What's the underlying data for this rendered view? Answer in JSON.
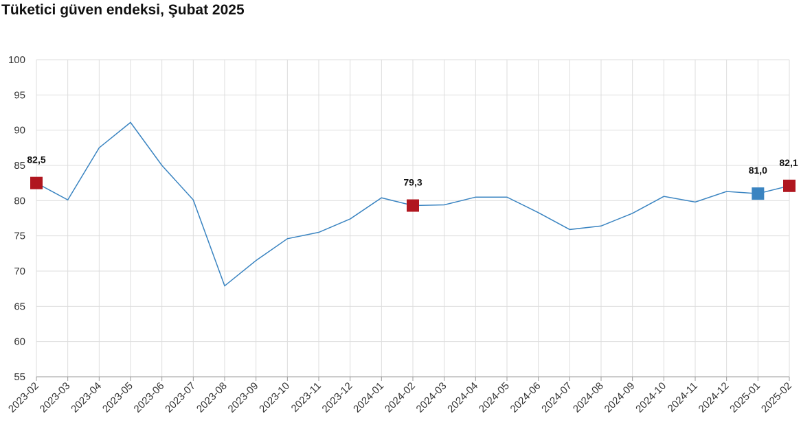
{
  "chart_data": {
    "type": "line",
    "title": "Tüketici güven endeksi, Şubat 2025",
    "categories": [
      "2023-02",
      "2023-03",
      "2023-04",
      "2023-05",
      "2023-06",
      "2023-07",
      "2023-08",
      "2023-09",
      "2023-10",
      "2023-11",
      "2023-12",
      "2024-01",
      "2024-02",
      "2024-03",
      "2024-04",
      "2024-05",
      "2024-06",
      "2024-07",
      "2024-08",
      "2024-09",
      "2024-10",
      "2024-11",
      "2024-12",
      "2025-01",
      "2025-02"
    ],
    "series": [
      {
        "color": "#3a84c1",
        "values": [
          82.5,
          80.1,
          87.5,
          91.1,
          85.0,
          80.1,
          67.9,
          71.5,
          74.6,
          75.5,
          77.4,
          80.4,
          79.3,
          79.4,
          80.5,
          80.5,
          78.3,
          75.9,
          76.4,
          78.2,
          80.6,
          79.8,
          81.3,
          81.0,
          82.1
        ],
        "value_labels": [
          "82,5",
          null,
          null,
          null,
          null,
          null,
          null,
          null,
          null,
          null,
          null,
          null,
          "79,3",
          null,
          null,
          null,
          null,
          null,
          null,
          null,
          null,
          null,
          null,
          "81,0",
          "82,1"
        ],
        "marker_colors": [
          "#b0161f",
          null,
          null,
          null,
          null,
          null,
          null,
          null,
          null,
          null,
          null,
          null,
          "#b0161f",
          null,
          null,
          null,
          null,
          null,
          null,
          null,
          null,
          null,
          null,
          "#3a84c1",
          "#b0161f"
        ]
      }
    ],
    "ylim": [
      55,
      100
    ],
    "yticks": [
      55,
      60,
      65,
      70,
      75,
      80,
      85,
      90,
      95,
      100
    ],
    "grid": true
  }
}
